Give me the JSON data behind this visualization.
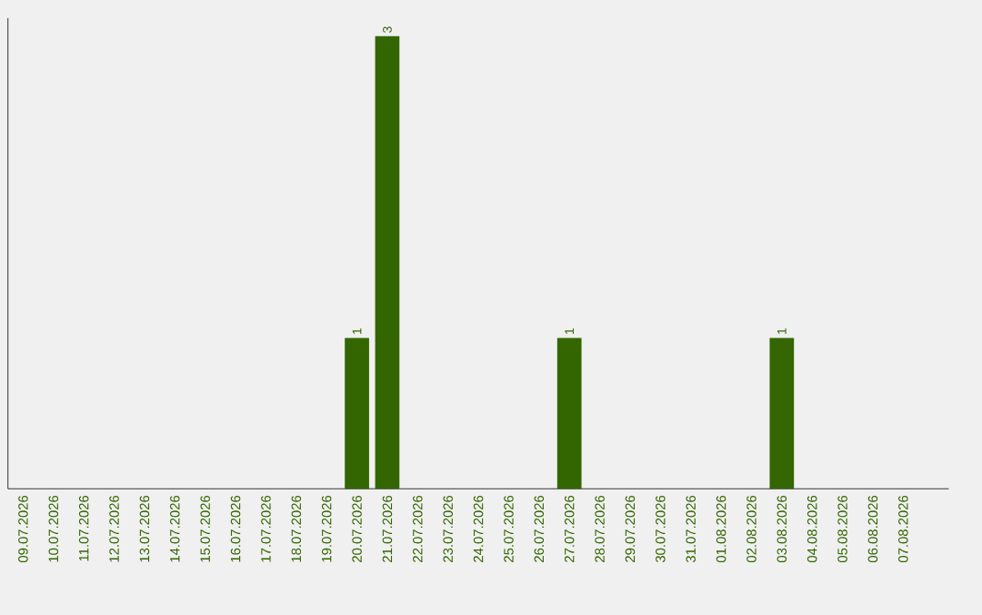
{
  "chart_data": {
    "type": "bar",
    "categories": [
      "09.07.2026",
      "10.07.2026",
      "11.07.2026",
      "12.07.2026",
      "13.07.2026",
      "14.07.2026",
      "15.07.2026",
      "16.07.2026",
      "17.07.2026",
      "18.07.2026",
      "19.07.2026",
      "20.07.2026",
      "21.07.2026",
      "22.07.2026",
      "23.07.2026",
      "24.07.2026",
      "25.07.2026",
      "26.07.2026",
      "27.07.2026",
      "28.07.2026",
      "29.07.2026",
      "30.07.2026",
      "31.07.2026",
      "01.08.2026",
      "02.08.2026",
      "03.08.2026",
      "04.08.2026",
      "05.08.2026",
      "06.08.2026",
      "07.08.2026"
    ],
    "values": [
      0,
      0,
      0,
      0,
      0,
      0,
      0,
      0,
      0,
      0,
      0,
      1,
      3,
      0,
      0,
      0,
      0,
      0,
      1,
      0,
      0,
      0,
      0,
      0,
      0,
      1,
      0,
      0,
      0,
      0
    ],
    "value_labels": [
      null,
      null,
      null,
      null,
      null,
      null,
      null,
      null,
      null,
      null,
      null,
      "1",
      "3",
      null,
      null,
      null,
      null,
      null,
      "1",
      null,
      null,
      null,
      null,
      null,
      null,
      "1",
      null,
      null,
      null,
      null
    ],
    "color": "#336600",
    "tick_labels": "x",
    "grid": false
  }
}
